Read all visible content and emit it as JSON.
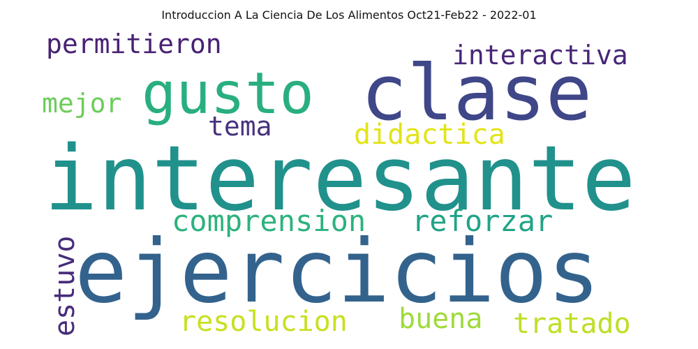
{
  "chart_data": {
    "type": "wordcloud",
    "title": "Introduccion A La Ciencia De Los Alimentos Oct21-Feb22 - 2022-01",
    "words": [
      {
        "text": "interesante",
        "weight": 1.0,
        "color": "#21918c",
        "orientation": "horizontal"
      },
      {
        "text": "ejercicios",
        "weight": 0.98,
        "color": "#33638d",
        "orientation": "horizontal"
      },
      {
        "text": "clase",
        "weight": 0.82,
        "color": "#3f4788",
        "orientation": "horizontal"
      },
      {
        "text": "gusto",
        "weight": 0.62,
        "color": "#29af7f",
        "orientation": "horizontal"
      },
      {
        "text": "comprension",
        "weight": 0.3,
        "color": "#2db27d",
        "orientation": "horizontal"
      },
      {
        "text": "reforzar",
        "weight": 0.3,
        "color": "#20a386",
        "orientation": "horizontal"
      },
      {
        "text": "resolucion",
        "weight": 0.28,
        "color": "#c8e020",
        "orientation": "horizontal"
      },
      {
        "text": "buena",
        "weight": 0.28,
        "color": "#9fda3a",
        "orientation": "horizontal"
      },
      {
        "text": "tratado",
        "weight": 0.28,
        "color": "#bddf26",
        "orientation": "horizontal"
      },
      {
        "text": "didactica",
        "weight": 0.28,
        "color": "#e2e418",
        "orientation": "horizontal"
      },
      {
        "text": "estuvo",
        "weight": 0.27,
        "color": "#472c7a",
        "orientation": "vertical"
      },
      {
        "text": "interactiva",
        "weight": 0.26,
        "color": "#482677",
        "orientation": "horizontal"
      },
      {
        "text": "permitieron",
        "weight": 0.26,
        "color": "#482173",
        "orientation": "horizontal"
      },
      {
        "text": "mejor",
        "weight": 0.26,
        "color": "#6ccd5a",
        "orientation": "horizontal"
      },
      {
        "text": "tema",
        "weight": 0.25,
        "color": "#46327e",
        "orientation": "horizontal"
      }
    ]
  }
}
